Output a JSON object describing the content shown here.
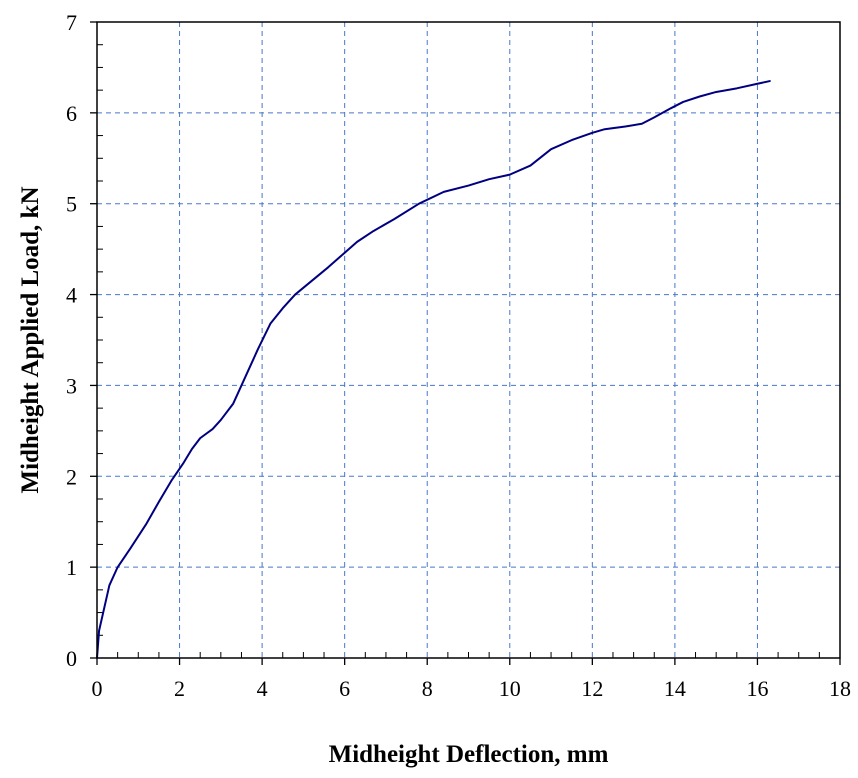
{
  "chart_data": {
    "type": "line",
    "title": "",
    "xlabel": "Midheight Deflection, mm",
    "ylabel": "Midheight Applied Load, kN",
    "xlim": [
      0,
      18
    ],
    "ylim": [
      0,
      7
    ],
    "x_ticks": [
      0,
      2,
      4,
      6,
      8,
      10,
      12,
      14,
      16,
      18
    ],
    "y_ticks": [
      0,
      1,
      2,
      3,
      4,
      5,
      6,
      7
    ],
    "grid": true,
    "legend": "none",
    "series": [
      {
        "color": "#000080",
        "x": [
          0,
          0.05,
          0.15,
          0.3,
          0.5,
          0.8,
          1.2,
          1.5,
          1.8,
          2.1,
          2.3,
          2.5,
          2.8,
          3.0,
          3.3,
          3.6,
          3.9,
          4.2,
          4.5,
          4.8,
          5.2,
          5.6,
          5.9,
          6.3,
          6.7,
          7.2,
          7.8,
          8.4,
          9.0,
          9.5,
          10.0,
          10.5,
          11.0,
          11.5,
          12.0,
          12.3,
          12.8,
          13.2,
          13.5,
          13.9,
          14.2,
          14.6,
          15.0,
          15.5,
          16.0,
          16.3
        ],
        "y": [
          0,
          0.3,
          0.5,
          0.8,
          1.0,
          1.2,
          1.48,
          1.72,
          1.95,
          2.15,
          2.3,
          2.42,
          2.52,
          2.62,
          2.8,
          3.1,
          3.4,
          3.68,
          3.85,
          4.0,
          4.15,
          4.3,
          4.42,
          4.58,
          4.7,
          4.83,
          5.0,
          5.13,
          5.2,
          5.27,
          5.32,
          5.42,
          5.6,
          5.7,
          5.78,
          5.82,
          5.85,
          5.88,
          5.95,
          6.05,
          6.12,
          6.18,
          6.23,
          6.27,
          6.32,
          6.35
        ]
      }
    ]
  }
}
